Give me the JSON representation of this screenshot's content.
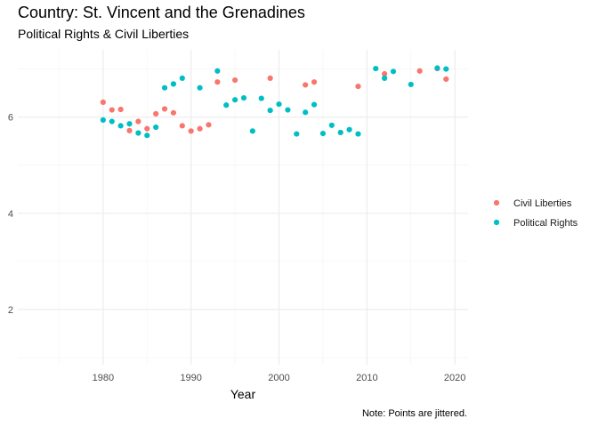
{
  "chart_data": {
    "type": "scatter",
    "title": "Country: St. Vincent and the Grenadines",
    "subtitle": "Political Rights & Civil Liberties",
    "xlabel": "Year",
    "ylabel": "",
    "caption": "Note: Points are jittered.",
    "xlim": [
      1970.3,
      2021.5
    ],
    "ylim": [
      0.85,
      7.4
    ],
    "x_ticks": [
      1980,
      1990,
      2000,
      2010,
      2020
    ],
    "y_ticks": [
      2,
      4,
      6
    ],
    "grid": true,
    "legend_position": "right",
    "series": [
      {
        "name": "Civil Liberties",
        "color": "#F8766D",
        "points": [
          [
            1980,
            6.31
          ],
          [
            1981,
            6.15
          ],
          [
            1982,
            6.16
          ],
          [
            1983,
            5.72
          ],
          [
            1984,
            5.91
          ],
          [
            1985,
            5.76
          ],
          [
            1986,
            6.07
          ],
          [
            1987,
            6.17
          ],
          [
            1988,
            6.09
          ],
          [
            1989,
            5.82
          ],
          [
            1990,
            5.71
          ],
          [
            1991,
            5.76
          ],
          [
            1992,
            5.84
          ],
          [
            1993,
            6.73
          ],
          [
            1995,
            6.77
          ],
          [
            1999,
            6.81
          ],
          [
            2003,
            6.67
          ],
          [
            2004,
            6.73
          ],
          [
            2009,
            6.64
          ],
          [
            2012,
            6.9
          ],
          [
            2016,
            6.96
          ],
          [
            2018,
            7.01
          ],
          [
            2019,
            6.79
          ]
        ]
      },
      {
        "name": "Political Rights",
        "color": "#00BFC4",
        "points": [
          [
            1980,
            5.94
          ],
          [
            1981,
            5.91
          ],
          [
            1982,
            5.82
          ],
          [
            1983,
            5.86
          ],
          [
            1984,
            5.67
          ],
          [
            1985,
            5.62
          ],
          [
            1986,
            5.79
          ],
          [
            1987,
            6.61
          ],
          [
            1988,
            6.69
          ],
          [
            1989,
            6.81
          ],
          [
            1991,
            6.61
          ],
          [
            1993,
            6.96
          ],
          [
            1994,
            6.25
          ],
          [
            1995,
            6.36
          ],
          [
            1996,
            6.4
          ],
          [
            1997,
            5.71
          ],
          [
            1998,
            6.39
          ],
          [
            1999,
            6.14
          ],
          [
            2000,
            6.27
          ],
          [
            2001,
            6.15
          ],
          [
            2002,
            5.65
          ],
          [
            2003,
            6.1
          ],
          [
            2004,
            6.26
          ],
          [
            2005,
            5.66
          ],
          [
            2006,
            5.83
          ],
          [
            2007,
            5.68
          ],
          [
            2008,
            5.74
          ],
          [
            2009,
            5.65
          ],
          [
            2011,
            7.01
          ],
          [
            2012,
            6.81
          ],
          [
            2013,
            6.95
          ],
          [
            2015,
            6.68
          ],
          [
            2018,
            7.02
          ],
          [
            2019,
            7.0
          ]
        ]
      }
    ]
  }
}
